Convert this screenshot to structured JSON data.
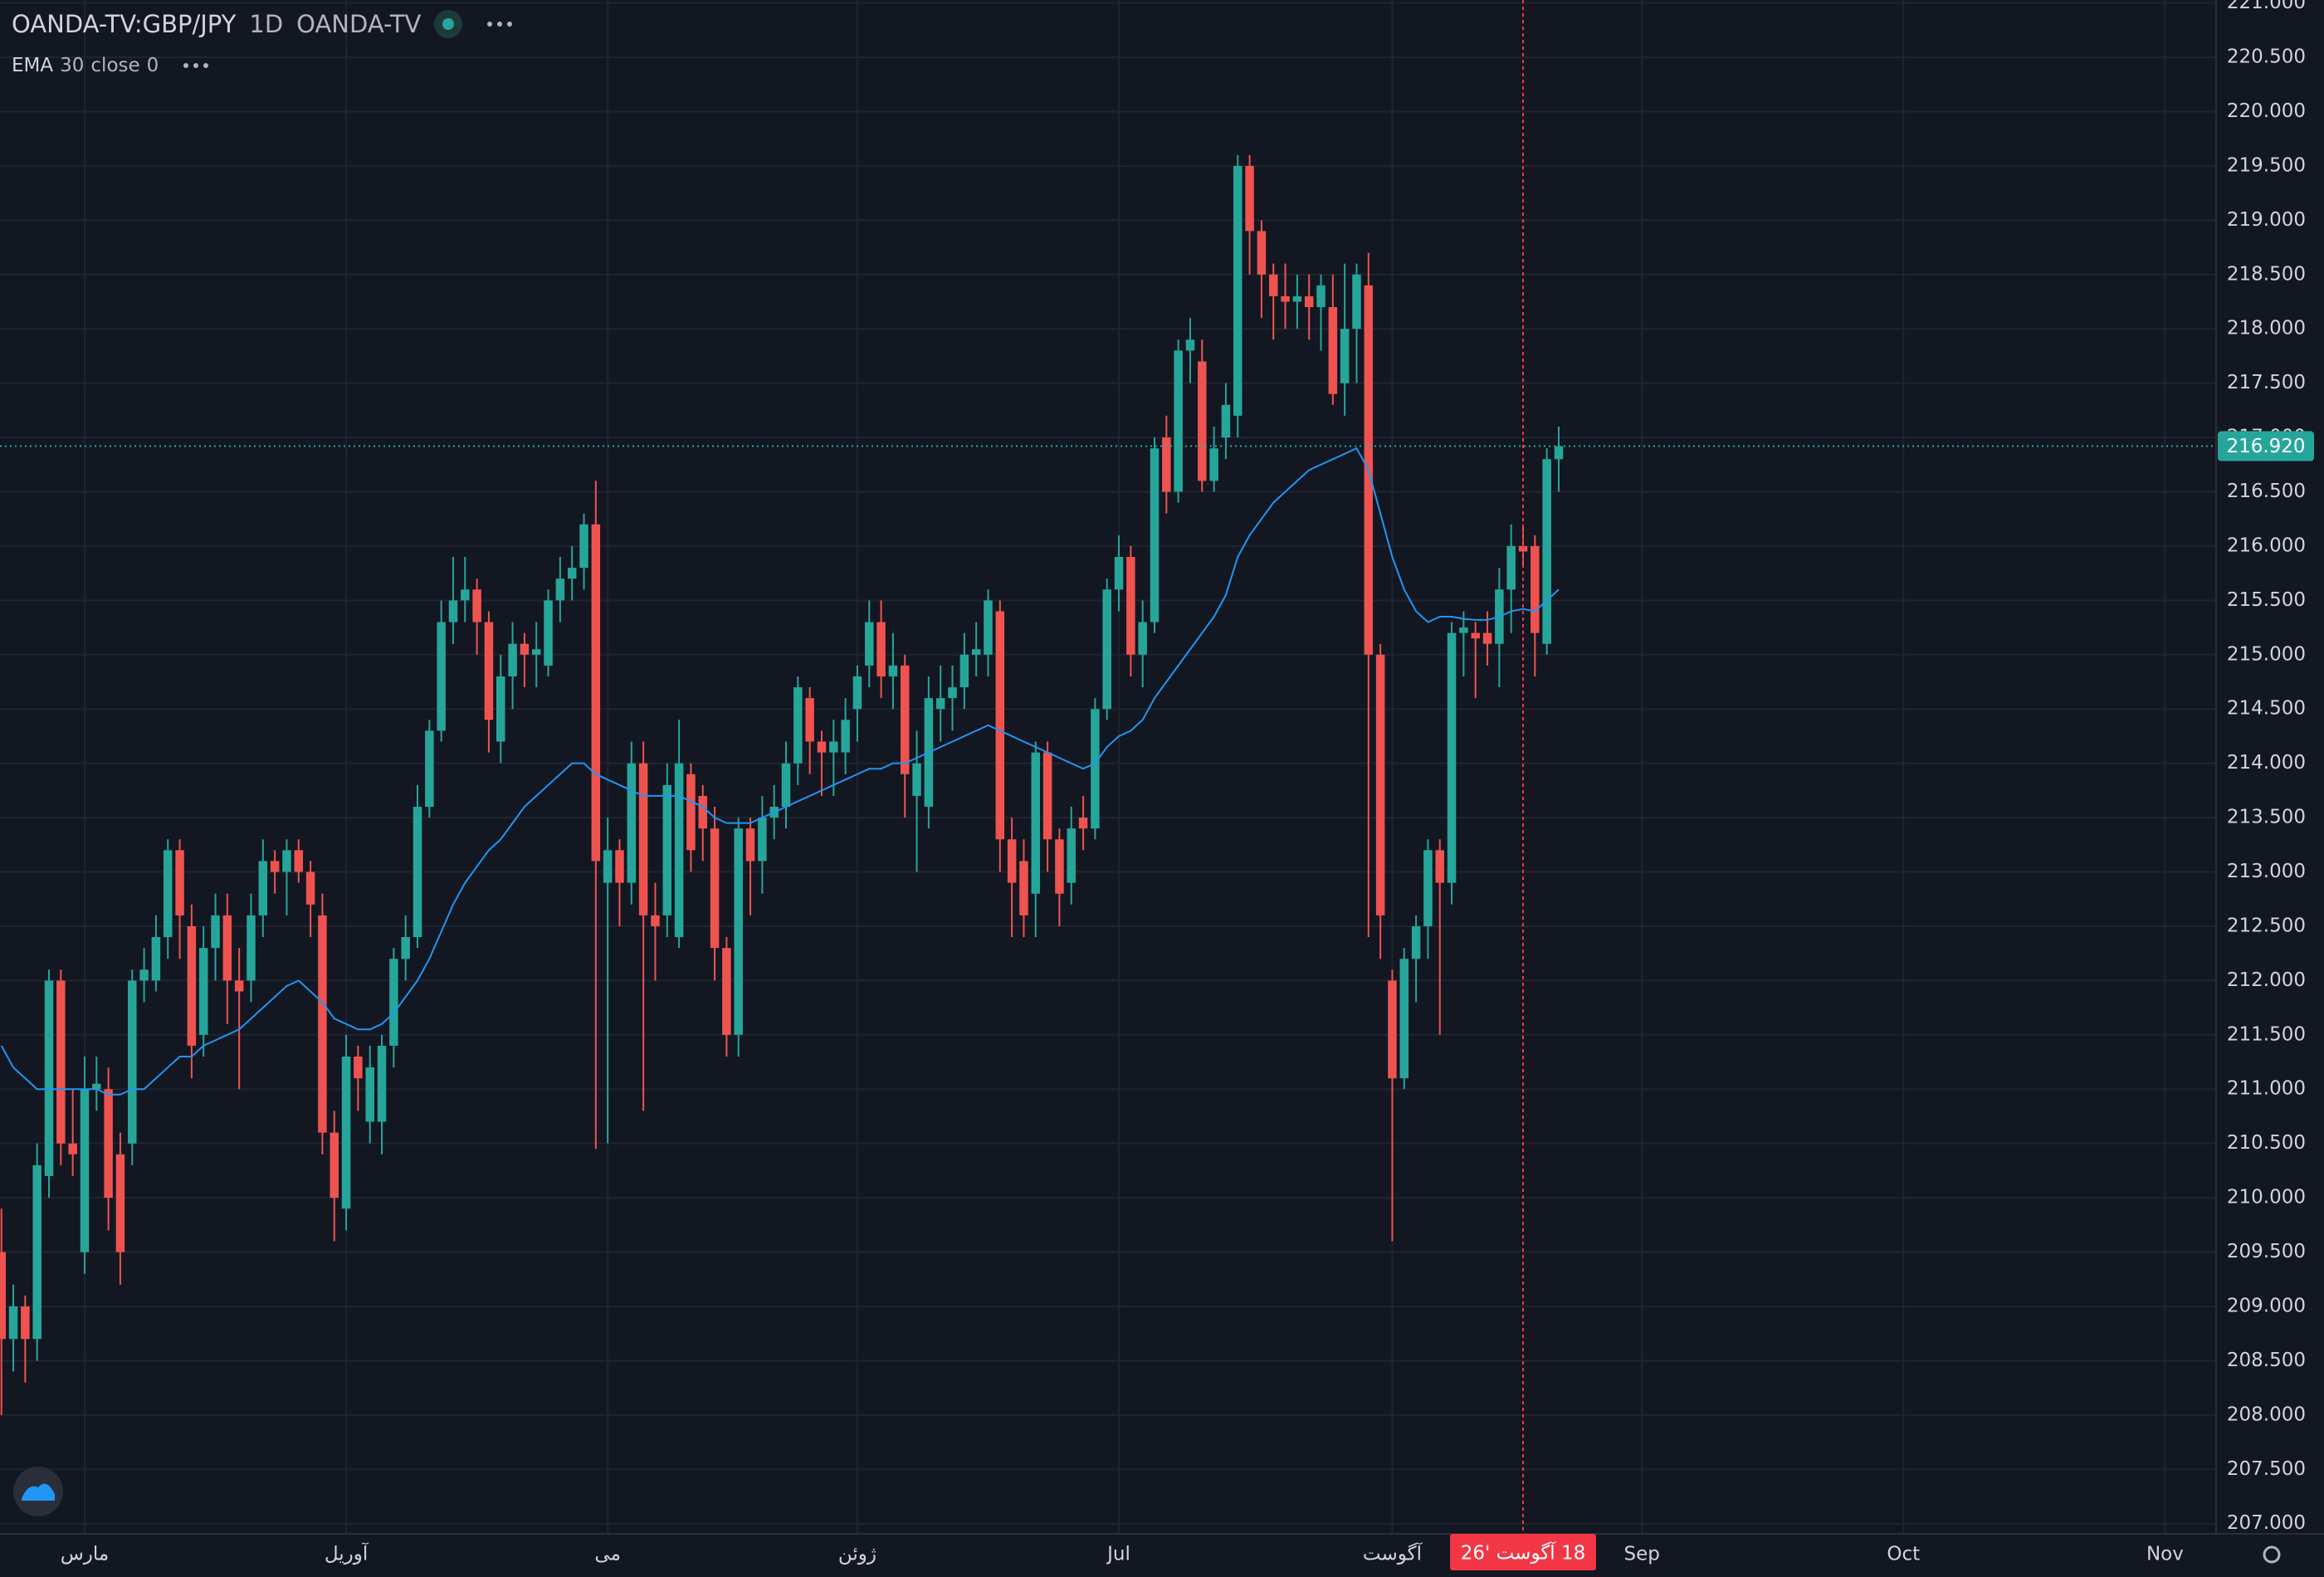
{
  "chart_data": {
    "type": "candlestick",
    "symbol": "OANDA-TV:GBP/JPY",
    "interval": "1D",
    "exchange": "OANDA-TV",
    "up_color": "#26a69a",
    "down_color": "#ef5350",
    "grid": true,
    "open": [
      209.5,
      208.7,
      209.0,
      208.7,
      210.2,
      212.0,
      210.5,
      209.5,
      211.0,
      211.0,
      210.4,
      210.5,
      212.0,
      212.0,
      212.4,
      213.2,
      212.5,
      211.5,
      212.3,
      212.6,
      212.0,
      212.0,
      212.6,
      213.1,
      213.0,
      213.2,
      213.0,
      212.6,
      210.6,
      209.9,
      211.3,
      210.7,
      210.7,
      211.4,
      212.2,
      212.4,
      213.6,
      214.3,
      215.3,
      215.5,
      215.6,
      215.3,
      214.2,
      214.8,
      215.1,
      215.0,
      214.9,
      215.5,
      215.7,
      215.8,
      216.2,
      212.9,
      213.2,
      212.9,
      214.0,
      212.6,
      212.6,
      212.4,
      213.9,
      213.7,
      213.4,
      212.3,
      211.5,
      213.4,
      213.1,
      213.5,
      213.6,
      214.0,
      214.6,
      214.2,
      214.1,
      214.1,
      214.5,
      214.9,
      215.3,
      214.8,
      214.9,
      213.7,
      213.6,
      214.5,
      214.6,
      214.7,
      215.0,
      215.0,
      215.4,
      213.3,
      213.1,
      212.8,
      214.1,
      213.3,
      212.9,
      213.5,
      213.4,
      214.5,
      215.6,
      215.9,
      215.0,
      215.3,
      217.0,
      216.5,
      217.8,
      217.7,
      216.6,
      217.0,
      217.2,
      219.5,
      218.9,
      218.5,
      218.3,
      218.25,
      218.3,
      218.2,
      218.2,
      217.5,
      218.0,
      218.4,
      215.0,
      212.0,
      211.1,
      212.2,
      212.5,
      213.2,
      212.9,
      215.2,
      215.2,
      215.2,
      215.1,
      215.6,
      216.0,
      216.0,
      215.1,
      216.8
    ],
    "high": [
      209.9,
      209.2,
      209.1,
      210.5,
      212.1,
      212.1,
      211.0,
      211.3,
      211.3,
      211.2,
      210.6,
      212.1,
      212.3,
      212.6,
      213.3,
      213.3,
      212.7,
      212.5,
      212.8,
      212.8,
      212.3,
      212.8,
      213.3,
      213.2,
      213.3,
      213.3,
      213.1,
      212.8,
      210.8,
      211.5,
      211.4,
      211.4,
      211.5,
      212.3,
      212.6,
      213.8,
      214.4,
      215.5,
      215.9,
      215.9,
      215.7,
      215.4,
      215.0,
      215.3,
      215.2,
      215.3,
      215.6,
      215.9,
      216.0,
      216.3,
      216.6,
      213.5,
      213.3,
      214.2,
      214.2,
      212.9,
      214.0,
      214.4,
      214.0,
      213.8,
      213.6,
      212.4,
      213.5,
      213.5,
      213.7,
      213.8,
      214.2,
      214.8,
      214.7,
      214.3,
      214.4,
      214.6,
      214.9,
      215.5,
      215.5,
      215.2,
      215.0,
      214.3,
      214.8,
      214.9,
      214.9,
      215.2,
      215.3,
      215.6,
      215.5,
      213.5,
      213.3,
      214.2,
      214.2,
      213.4,
      213.6,
      213.7,
      214.6,
      215.7,
      216.1,
      216.0,
      215.5,
      217.0,
      217.2,
      217.9,
      218.1,
      217.9,
      217.1,
      217.5,
      219.6,
      219.6,
      219.0,
      218.6,
      218.6,
      218.5,
      218.5,
      218.5,
      218.5,
      218.6,
      218.6,
      218.7,
      215.1,
      212.1,
      212.3,
      212.6,
      213.3,
      213.3,
      215.3,
      215.4,
      215.3,
      215.4,
      215.8,
      216.2,
      216.2,
      216.1,
      216.9,
      217.1
    ],
    "low": [
      208.0,
      208.4,
      208.3,
      208.5,
      210.0,
      210.3,
      210.2,
      209.3,
      210.8,
      209.7,
      209.2,
      210.3,
      211.8,
      211.9,
      212.2,
      212.2,
      211.1,
      211.3,
      212.0,
      211.6,
      211.0,
      211.8,
      212.4,
      212.8,
      212.6,
      212.9,
      212.4,
      210.4,
      209.6,
      209.7,
      210.8,
      210.5,
      210.4,
      211.2,
      212.0,
      212.3,
      213.5,
      214.2,
      215.1,
      215.3,
      215.0,
      214.1,
      214.0,
      214.5,
      214.7,
      214.7,
      214.8,
      215.3,
      215.5,
      215.6,
      210.45,
      210.5,
      212.5,
      212.7,
      210.8,
      212.0,
      212.4,
      212.3,
      213.0,
      213.1,
      212.0,
      211.3,
      211.3,
      212.6,
      212.8,
      213.3,
      213.4,
      213.8,
      213.9,
      213.7,
      213.7,
      213.9,
      214.2,
      214.7,
      214.6,
      214.5,
      213.5,
      213.0,
      213.4,
      214.2,
      214.3,
      214.5,
      214.8,
      214.8,
      213.0,
      212.4,
      212.4,
      212.4,
      213.0,
      212.5,
      212.7,
      213.2,
      213.3,
      214.4,
      215.4,
      214.8,
      214.7,
      215.2,
      216.3,
      216.4,
      217.5,
      216.5,
      216.5,
      216.8,
      217.0,
      218.5,
      218.1,
      217.9,
      218.0,
      218.0,
      217.9,
      217.8,
      217.3,
      217.2,
      217.5,
      212.4,
      212.2,
      209.6,
      211.0,
      211.8,
      212.2,
      211.5,
      212.7,
      214.8,
      214.6,
      214.9,
      214.7,
      215.2,
      215.8,
      214.8,
      215.0,
      216.5
    ],
    "close": [
      208.7,
      209.0,
      208.7,
      210.3,
      212.0,
      210.5,
      210.4,
      211.0,
      211.05,
      210.0,
      209.5,
      212.0,
      212.1,
      212.4,
      213.2,
      212.6,
      211.4,
      212.3,
      212.6,
      212.0,
      211.9,
      212.6,
      213.1,
      213.0,
      213.2,
      213.0,
      212.7,
      210.6,
      210.0,
      211.3,
      211.1,
      211.2,
      211.4,
      212.2,
      212.4,
      213.6,
      214.3,
      215.3,
      215.5,
      215.6,
      215.3,
      214.4,
      214.8,
      215.1,
      215.0,
      215.05,
      215.5,
      215.7,
      215.8,
      216.2,
      213.1,
      213.2,
      212.9,
      214.0,
      212.6,
      212.5,
      213.8,
      214.0,
      213.2,
      213.4,
      212.3,
      211.5,
      213.4,
      213.1,
      213.5,
      213.6,
      214.0,
      214.7,
      214.2,
      214.1,
      214.2,
      214.4,
      214.8,
      215.3,
      214.8,
      214.9,
      213.9,
      214.0,
      214.6,
      214.6,
      214.7,
      215.0,
      215.05,
      215.5,
      213.3,
      212.9,
      212.6,
      214.1,
      213.3,
      212.8,
      213.4,
      213.4,
      214.5,
      215.6,
      215.9,
      215.0,
      215.3,
      216.9,
      216.5,
      217.8,
      217.9,
      216.6,
      216.9,
      217.3,
      219.5,
      218.9,
      218.5,
      218.3,
      218.25,
      218.3,
      218.2,
      218.4,
      217.4,
      218.0,
      218.5,
      215.0,
      212.6,
      211.1,
      212.2,
      212.5,
      213.2,
      212.9,
      215.2,
      215.25,
      215.15,
      215.1,
      215.6,
      216.0,
      215.95,
      215.2,
      216.8,
      216.92
    ],
    "ema": {
      "name": "EMA",
      "length": 30,
      "source": "close",
      "offset": 0,
      "color": "#2196f3",
      "values": [
        211.4,
        211.2,
        211.1,
        211.0,
        211.0,
        211.0,
        211.0,
        211.0,
        211.0,
        210.95,
        210.95,
        211.0,
        211.0,
        211.1,
        211.2,
        211.3,
        211.3,
        211.4,
        211.45,
        211.5,
        211.55,
        211.65,
        211.75,
        211.85,
        211.95,
        212.0,
        211.9,
        211.8,
        211.65,
        211.6,
        211.55,
        211.55,
        211.6,
        211.7,
        211.85,
        212.0,
        212.2,
        212.45,
        212.7,
        212.9,
        213.05,
        213.2,
        213.3,
        213.45,
        213.6,
        213.7,
        213.8,
        213.9,
        214.0,
        214.0,
        213.9,
        213.85,
        213.8,
        213.75,
        213.7,
        213.7,
        213.7,
        213.7,
        213.65,
        213.6,
        213.5,
        213.45,
        213.45,
        213.45,
        213.5,
        213.55,
        213.6,
        213.65,
        213.7,
        213.75,
        213.8,
        213.85,
        213.9,
        213.95,
        213.95,
        214.0,
        214.0,
        214.05,
        214.1,
        214.15,
        214.2,
        214.25,
        214.3,
        214.35,
        214.3,
        214.25,
        214.2,
        214.15,
        214.1,
        214.05,
        214.0,
        213.95,
        214.0,
        214.15,
        214.25,
        214.3,
        214.4,
        214.6,
        214.75,
        214.9,
        215.05,
        215.2,
        215.35,
        215.55,
        215.9,
        216.1,
        216.25,
        216.4,
        216.5,
        216.6,
        216.7,
        216.75,
        216.8,
        216.85,
        216.9,
        216.7,
        216.3,
        215.9,
        215.6,
        215.4,
        215.3,
        215.35,
        215.35,
        215.33,
        215.32,
        215.32,
        215.35,
        215.4,
        215.42,
        215.4,
        215.5,
        215.6
      ]
    },
    "last_price": {
      "value": 216.92,
      "label": "216.920"
    },
    "crosshair_label": "18 آگوست '26",
    "xlim": [
      -0.12,
      186.3
    ],
    "xticks": [
      {
        "value": 7,
        "label": "مارس"
      },
      {
        "value": 29,
        "label": "آوریل"
      },
      {
        "value": 51,
        "label": "می"
      },
      {
        "value": 72,
        "label": "ژوئن"
      },
      {
        "value": 94,
        "label": "Jul"
      },
      {
        "value": 117,
        "label": "آگوست"
      },
      {
        "value": 138,
        "label": "Sep"
      },
      {
        "value": 160,
        "label": "Oct"
      },
      {
        "value": 182,
        "label": "Nov"
      }
    ],
    "ylim": [
      207,
      221
    ],
    "yticks": [
      {
        "value": 207,
        "label": "207.000"
      },
      {
        "value": 207.5,
        "label": "207.500"
      },
      {
        "value": 208,
        "label": "208.000"
      },
      {
        "value": 208.5,
        "label": "208.500"
      },
      {
        "value": 209,
        "label": "209.000"
      },
      {
        "value": 209.5,
        "label": "209.500"
      },
      {
        "value": 210,
        "label": "210.000"
      },
      {
        "value": 210.5,
        "label": "210.500"
      },
      {
        "value": 211,
        "label": "211.000"
      },
      {
        "value": 211.5,
        "label": "211.500"
      },
      {
        "value": 212,
        "label": "212.000"
      },
      {
        "value": 212.5,
        "label": "212.500"
      },
      {
        "value": 213,
        "label": "213.000"
      },
      {
        "value": 213.5,
        "label": "213.500"
      },
      {
        "value": 214,
        "label": "214.000"
      },
      {
        "value": 214.5,
        "label": "214.500"
      },
      {
        "value": 215,
        "label": "215.000"
      },
      {
        "value": 215.5,
        "label": "215.500"
      },
      {
        "value": 216,
        "label": "216.000"
      },
      {
        "value": 216.5,
        "label": "216.500"
      },
      {
        "value": 217,
        "label": "217.000"
      },
      {
        "value": 217.5,
        "label": "217.500"
      },
      {
        "value": 218,
        "label": "218.000"
      },
      {
        "value": 218.5,
        "label": "218.500"
      },
      {
        "value": 219,
        "label": "219.000"
      },
      {
        "value": 219.5,
        "label": "219.500"
      },
      {
        "value": 220,
        "label": "220.000"
      },
      {
        "value": 220.5,
        "label": "220.500"
      },
      {
        "value": 221,
        "label": "221.000"
      }
    ]
  }
}
